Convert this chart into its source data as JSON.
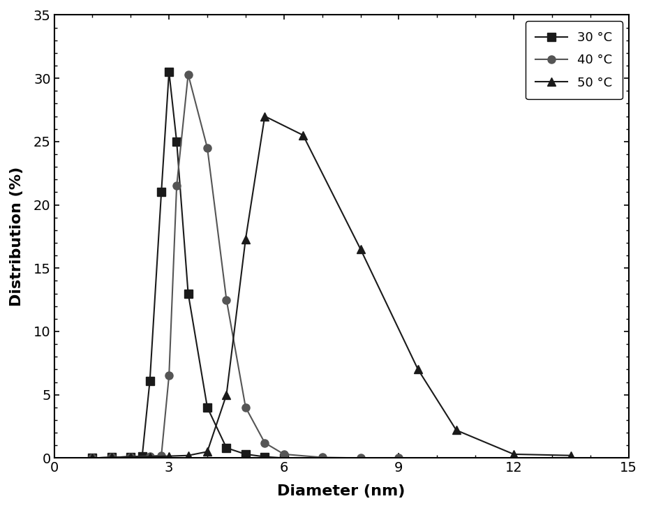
{
  "series": [
    {
      "label": "30 °C",
      "marker": "s",
      "color": "#1a1a1a",
      "x": [
        1.0,
        1.5,
        2.0,
        2.3,
        2.5,
        2.8,
        3.0,
        3.2,
        3.5,
        4.0,
        4.5,
        5.0,
        5.5,
        6.0
      ],
      "y": [
        0.0,
        0.05,
        0.1,
        0.15,
        6.1,
        21.0,
        30.5,
        25.0,
        13.0,
        4.0,
        0.8,
        0.3,
        0.1,
        0.0
      ]
    },
    {
      "label": "40 °C",
      "marker": "o",
      "color": "#555555",
      "x": [
        1.0,
        1.5,
        2.0,
        2.5,
        2.8,
        3.0,
        3.2,
        3.5,
        4.0,
        4.5,
        5.0,
        5.5,
        6.0,
        7.0,
        8.0,
        9.0
      ],
      "y": [
        0.0,
        0.05,
        0.1,
        0.15,
        0.2,
        6.5,
        21.5,
        30.3,
        24.5,
        12.5,
        4.0,
        1.2,
        0.3,
        0.05,
        0.0,
        0.0
      ]
    },
    {
      "label": "50 °C",
      "marker": "^",
      "color": "#1a1a1a",
      "x": [
        1.0,
        1.5,
        2.0,
        2.5,
        3.0,
        3.5,
        4.0,
        4.5,
        5.0,
        5.5,
        6.5,
        8.0,
        9.5,
        10.5,
        12.0,
        13.5
      ],
      "y": [
        0.0,
        0.05,
        0.1,
        0.1,
        0.15,
        0.2,
        0.5,
        5.0,
        17.3,
        27.0,
        25.5,
        16.5,
        7.0,
        2.2,
        0.3,
        0.2
      ]
    }
  ],
  "xlabel": "Diameter (nm)",
  "ylabel": "Distribution (%)",
  "xlim": [
    0,
    15
  ],
  "ylim": [
    0,
    35
  ],
  "xticks": [
    0,
    3,
    6,
    9,
    12,
    15
  ],
  "yticks": [
    0,
    5,
    10,
    15,
    20,
    25,
    30,
    35
  ],
  "legend_loc": "upper right",
  "background_color": "#ffffff",
  "linewidth": 1.5,
  "markersize": 8
}
